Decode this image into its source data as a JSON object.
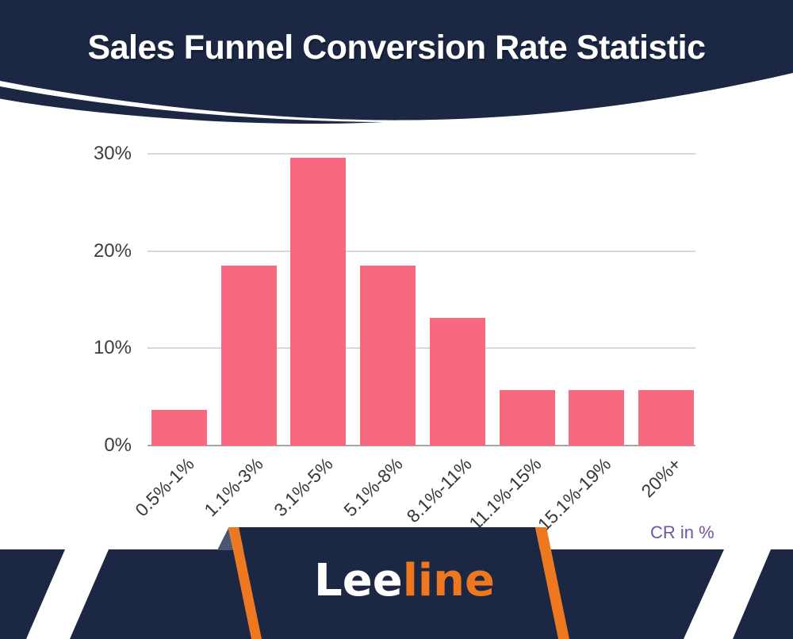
{
  "colors": {
    "navy": "#1c2843",
    "bar_pink": "#f8697f",
    "orange": "#ee7820",
    "purple": "#7155a5",
    "gridline": "#d9d9d9",
    "axis_line": "#a6a6a6",
    "tick_text": "#3d3d3d"
  },
  "header": {
    "title": "Sales Funnel Conversion Rate Statistic"
  },
  "chart_data": {
    "type": "bar",
    "title": "Sales Funnel Conversion Rate Statistic",
    "categories": [
      "0.5%-1%",
      "1.1%-3%",
      "3.1%-5%",
      "5.1%-8%",
      "8.1%-11%",
      "11.1%-15%",
      "15.1%-19%",
      "20%+"
    ],
    "values": [
      3.7,
      18.5,
      29.6,
      18.5,
      13.1,
      5.7,
      5.7,
      5.7
    ],
    "xlabel": "CR in %",
    "ylabel": "",
    "ylim": [
      0,
      30
    ],
    "yticks": [
      0,
      10,
      20,
      30
    ],
    "ytick_suffix": "%",
    "grid": true,
    "legend": "none",
    "bar_color": "#f8697f"
  },
  "footer": {
    "logo_left": "Lee",
    "logo_right": "line"
  }
}
